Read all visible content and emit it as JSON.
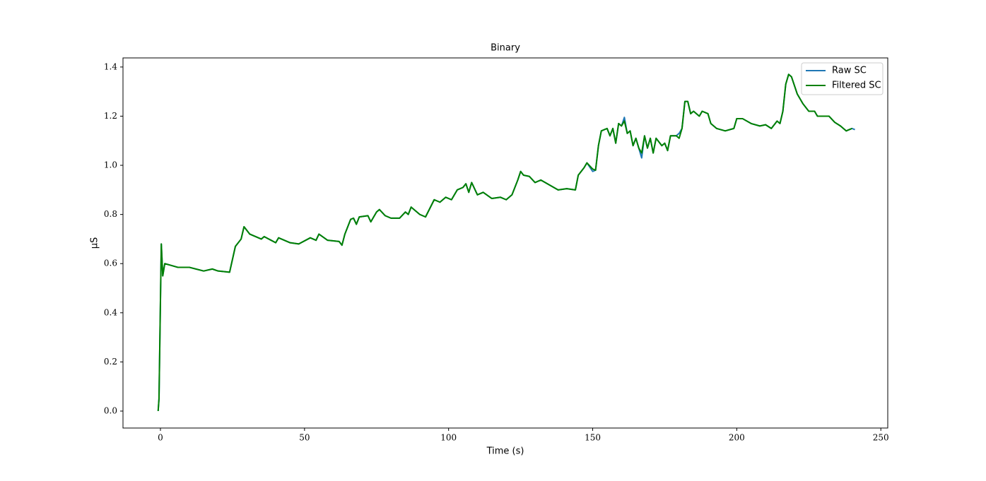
{
  "chart_data": {
    "type": "line",
    "title": "Binary",
    "x_label": "Time (s)",
    "y_label": "μS",
    "x": [
      -0.8,
      -0.5,
      0,
      0.3,
      0.8,
      1.5,
      3,
      6,
      10,
      15,
      18,
      20,
      24,
      26,
      28,
      29,
      31,
      35,
      36,
      40,
      41,
      45,
      48,
      52,
      54,
      55,
      58,
      62,
      63,
      64,
      66,
      67,
      68,
      69,
      72,
      73,
      75,
      76,
      78,
      80,
      83,
      85,
      86,
      87,
      90,
      92,
      95,
      97,
      99,
      101,
      103,
      105,
      106,
      107,
      108,
      110,
      112,
      115,
      118,
      120,
      122,
      124,
      125,
      126,
      128,
      130,
      132,
      135,
      138,
      141,
      144,
      145,
      147,
      148,
      150,
      151,
      152,
      153,
      155,
      156,
      157,
      158,
      159,
      160,
      161,
      162,
      163,
      164,
      165,
      166,
      167,
      168,
      169,
      170,
      171,
      172,
      174,
      175,
      176,
      177,
      179,
      180,
      181,
      182,
      183,
      184,
      185,
      187,
      188,
      190,
      191,
      193,
      196,
      199,
      200,
      202,
      205,
      208,
      210,
      212,
      214,
      215,
      216,
      217,
      218,
      219,
      221,
      223,
      225,
      227,
      228,
      230,
      232,
      234,
      236,
      238,
      239,
      240,
      241
    ],
    "series": [
      {
        "name": "Raw SC",
        "color": "#1f77b4",
        "values": [
          0.0,
          0.05,
          0.45,
          0.68,
          0.55,
          0.6,
          0.595,
          0.585,
          0.585,
          0.57,
          0.578,
          0.57,
          0.565,
          0.67,
          0.7,
          0.75,
          0.72,
          0.7,
          0.71,
          0.685,
          0.705,
          0.685,
          0.68,
          0.705,
          0.695,
          0.72,
          0.695,
          0.69,
          0.675,
          0.72,
          0.78,
          0.785,
          0.76,
          0.79,
          0.795,
          0.77,
          0.81,
          0.82,
          0.795,
          0.785,
          0.785,
          0.81,
          0.8,
          0.83,
          0.8,
          0.79,
          0.86,
          0.85,
          0.87,
          0.86,
          0.9,
          0.91,
          0.925,
          0.89,
          0.93,
          0.88,
          0.89,
          0.865,
          0.87,
          0.86,
          0.88,
          0.94,
          0.975,
          0.96,
          0.955,
          0.93,
          0.94,
          0.92,
          0.9,
          0.905,
          0.9,
          0.96,
          0.99,
          1.01,
          0.975,
          0.98,
          1.08,
          1.14,
          1.15,
          1.12,
          1.15,
          1.09,
          1.17,
          1.16,
          1.195,
          1.13,
          1.14,
          1.08,
          1.11,
          1.07,
          1.03,
          1.12,
          1.07,
          1.11,
          1.05,
          1.11,
          1.08,
          1.09,
          1.06,
          1.12,
          1.12,
          1.13,
          1.15,
          1.26,
          1.26,
          1.21,
          1.22,
          1.2,
          1.22,
          1.21,
          1.17,
          1.15,
          1.14,
          1.15,
          1.19,
          1.19,
          1.17,
          1.16,
          1.165,
          1.15,
          1.18,
          1.17,
          1.22,
          1.33,
          1.37,
          1.36,
          1.29,
          1.25,
          1.22,
          1.22,
          1.2,
          1.2,
          1.2,
          1.175,
          1.16,
          1.14,
          1.145,
          1.15,
          1.145
        ]
      },
      {
        "name": "Filtered SC",
        "color": "#008000",
        "values": [
          0.0,
          0.05,
          0.45,
          0.68,
          0.55,
          0.6,
          0.595,
          0.585,
          0.585,
          0.57,
          0.578,
          0.57,
          0.565,
          0.67,
          0.7,
          0.75,
          0.72,
          0.7,
          0.71,
          0.685,
          0.705,
          0.685,
          0.68,
          0.705,
          0.695,
          0.72,
          0.695,
          0.69,
          0.675,
          0.72,
          0.78,
          0.785,
          0.76,
          0.79,
          0.795,
          0.77,
          0.81,
          0.82,
          0.795,
          0.785,
          0.785,
          0.81,
          0.8,
          0.83,
          0.8,
          0.79,
          0.86,
          0.85,
          0.87,
          0.86,
          0.9,
          0.91,
          0.925,
          0.89,
          0.93,
          0.88,
          0.89,
          0.865,
          0.87,
          0.86,
          0.88,
          0.94,
          0.975,
          0.96,
          0.955,
          0.93,
          0.94,
          0.92,
          0.9,
          0.905,
          0.9,
          0.96,
          0.99,
          1.01,
          0.985,
          0.98,
          1.08,
          1.14,
          1.15,
          1.12,
          1.15,
          1.09,
          1.17,
          1.16,
          1.18,
          1.13,
          1.14,
          1.08,
          1.11,
          1.07,
          1.05,
          1.12,
          1.07,
          1.11,
          1.05,
          1.11,
          1.08,
          1.09,
          1.06,
          1.12,
          1.12,
          1.11,
          1.15,
          1.26,
          1.26,
          1.21,
          1.22,
          1.2,
          1.22,
          1.21,
          1.17,
          1.15,
          1.14,
          1.15,
          1.19,
          1.19,
          1.17,
          1.16,
          1.165,
          1.15,
          1.18,
          1.17,
          1.22,
          1.33,
          1.37,
          1.36,
          1.29,
          1.25,
          1.22,
          1.22,
          1.2,
          1.2,
          1.2,
          1.175,
          1.16,
          1.14,
          1.145,
          1.15,
          null
        ]
      }
    ],
    "xlim": [
      -13,
      252.4
    ],
    "ylim": [
      -0.069,
      1.437
    ],
    "xticks": [
      0,
      50,
      100,
      150,
      200,
      250
    ],
    "yticks": [
      {
        "value": 0,
        "label": "0.0"
      },
      0.2,
      0.4,
      0.6,
      0.8,
      {
        "value": 1,
        "label": "1.0"
      },
      1.2,
      1.4
    ],
    "legend": "upper right"
  }
}
